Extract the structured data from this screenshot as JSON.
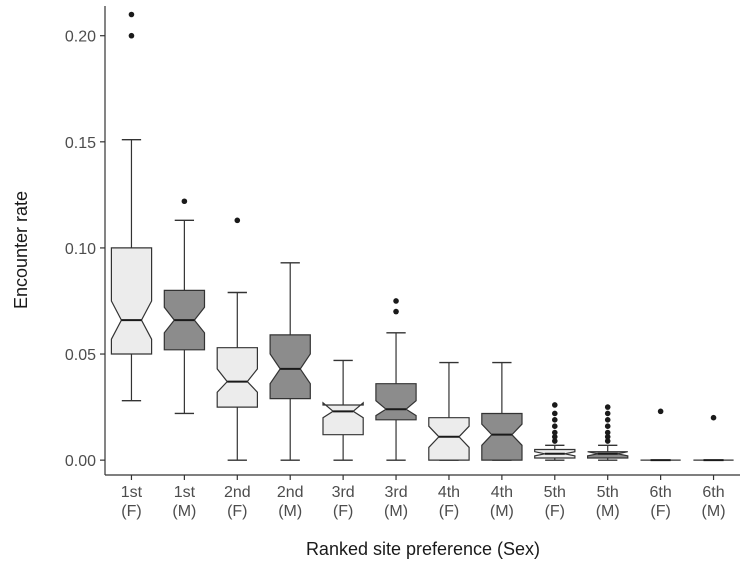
{
  "chart_data": {
    "type": "boxplot",
    "notched": true,
    "xlabel": "Ranked site preference (Sex)",
    "ylabel": "Encounter rate",
    "ylim": [
      -0.007,
      0.214
    ],
    "yticks": [
      0.0,
      0.05,
      0.1,
      0.15,
      0.2
    ],
    "ytick_labels": [
      "0.00",
      "0.05",
      "0.10",
      "0.15",
      "0.20"
    ],
    "grid": false,
    "legend": "none",
    "colors": {
      "F": "#ececec",
      "M": "#8c8c8c",
      "outline": "#333333"
    },
    "categories": [
      {
        "line1": "1st",
        "line2": "(F)",
        "sex": "F",
        "whisker_low": 0.028,
        "q1": 0.05,
        "median": 0.066,
        "q3": 0.1,
        "whisker_high": 0.151,
        "notch_low": 0.057,
        "notch_high": 0.075,
        "outliers": [
          0.2,
          0.21
        ]
      },
      {
        "line1": "1st",
        "line2": "(M)",
        "sex": "M",
        "whisker_low": 0.022,
        "q1": 0.052,
        "median": 0.066,
        "q3": 0.08,
        "whisker_high": 0.113,
        "notch_low": 0.06,
        "notch_high": 0.072,
        "outliers": [
          0.122
        ]
      },
      {
        "line1": "2nd",
        "line2": "(F)",
        "sex": "F",
        "whisker_low": 0.0,
        "q1": 0.025,
        "median": 0.037,
        "q3": 0.053,
        "whisker_high": 0.079,
        "notch_low": 0.032,
        "notch_high": 0.043,
        "outliers": [
          0.113
        ]
      },
      {
        "line1": "2nd",
        "line2": "(M)",
        "sex": "M",
        "whisker_low": 0.0,
        "q1": 0.029,
        "median": 0.043,
        "q3": 0.059,
        "whisker_high": 0.093,
        "notch_low": 0.036,
        "notch_high": 0.05,
        "outliers": []
      },
      {
        "line1": "3rd",
        "line2": "(F)",
        "sex": "F",
        "whisker_low": 0.0,
        "q1": 0.012,
        "median": 0.023,
        "q3": 0.026,
        "whisker_high": 0.047,
        "notch_low": 0.02,
        "notch_high": 0.027,
        "outliers": []
      },
      {
        "line1": "3rd",
        "line2": "(M)",
        "sex": "M",
        "whisker_low": 0.0,
        "q1": 0.019,
        "median": 0.024,
        "q3": 0.036,
        "whisker_high": 0.06,
        "notch_low": 0.021,
        "notch_high": 0.028,
        "outliers": [
          0.07,
          0.075
        ]
      },
      {
        "line1": "4th",
        "line2": "(F)",
        "sex": "F",
        "whisker_low": 0.0,
        "q1": 0.0,
        "median": 0.011,
        "q3": 0.02,
        "whisker_high": 0.046,
        "notch_low": 0.006,
        "notch_high": 0.016,
        "outliers": []
      },
      {
        "line1": "4th",
        "line2": "(M)",
        "sex": "M",
        "whisker_low": 0.0,
        "q1": 0.0,
        "median": 0.012,
        "q3": 0.022,
        "whisker_high": 0.046,
        "notch_low": 0.007,
        "notch_high": 0.017,
        "outliers": []
      },
      {
        "line1": "5th",
        "line2": "(F)",
        "sex": "F",
        "whisker_low": 0.0,
        "q1": 0.001,
        "median": 0.003,
        "q3": 0.005,
        "whisker_high": 0.007,
        "notch_low": 0.002,
        "notch_high": 0.004,
        "outliers": [
          0.009,
          0.011,
          0.013,
          0.016,
          0.019,
          0.022,
          0.026
        ]
      },
      {
        "line1": "5th",
        "line2": "(M)",
        "sex": "M",
        "whisker_low": 0.0,
        "q1": 0.001,
        "median": 0.003,
        "q3": 0.004,
        "whisker_high": 0.007,
        "notch_low": 0.002,
        "notch_high": 0.004,
        "outliers": [
          0.009,
          0.011,
          0.013,
          0.016,
          0.019,
          0.022,
          0.025
        ]
      },
      {
        "line1": "6th",
        "line2": "(F)",
        "sex": "F",
        "whisker_low": 0.0,
        "q1": 0.0,
        "median": 0.0,
        "q3": 0.0,
        "whisker_high": 0.0,
        "notch_low": 0.0,
        "notch_high": 0.0,
        "outliers": [
          0.023
        ]
      },
      {
        "line1": "6th",
        "line2": "(M)",
        "sex": "M",
        "whisker_low": 0.0,
        "q1": 0.0,
        "median": 0.0,
        "q3": 0.0,
        "whisker_high": 0.0,
        "notch_low": 0.0,
        "notch_high": 0.0,
        "outliers": [
          0.02
        ]
      }
    ]
  }
}
